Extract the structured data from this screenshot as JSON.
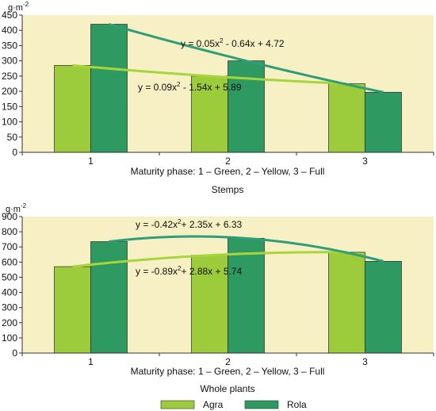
{
  "colors": {
    "plot_bg": "#f6f0c4",
    "agra": "#9ccb3b",
    "rola": "#2e9a62",
    "agra_trend": "#a8d43c",
    "rola_trend": "#2f9e78",
    "axis": "#333333"
  },
  "legend": {
    "agra_label": "Agra",
    "rola_label": "Rola",
    "placement": "bottom-center"
  },
  "chart_data": [
    {
      "type": "bar",
      "ylabel_base": "g·m",
      "ylabel_exp": "-2",
      "xlabel": "Maturity phase: 1 – Green, 2 – Yellow, 3 – Full",
      "subtitle": "Stemps",
      "categories": [
        "1",
        "2",
        "3"
      ],
      "ylim": [
        0,
        450
      ],
      "yticks": [
        0,
        50,
        100,
        150,
        200,
        250,
        300,
        350,
        400,
        450
      ],
      "series": [
        {
          "name": "Agra",
          "values": [
            285,
            250,
            225
          ]
        },
        {
          "name": "Rola",
          "values": [
            420,
            300,
            197
          ]
        }
      ],
      "trendlines": [
        {
          "series": "Rola",
          "pre": "y = 0.05x",
          "sup": "2",
          "post": " - 0.64x + 4.72"
        },
        {
          "series": "Agra",
          "pre": "y = 0.09x",
          "sup": "2",
          "post": " - 1.54x + 5.89"
        }
      ],
      "grid": false
    },
    {
      "type": "bar",
      "ylabel_base": "g·m",
      "ylabel_exp": "-2",
      "xlabel": "Maturity phase: 1 – Green, 2 – Yellow, 3 – Full",
      "subtitle": "Whole plants",
      "categories": [
        "1",
        "2",
        "3"
      ],
      "ylim": [
        0,
        900
      ],
      "yticks": [
        0,
        100,
        200,
        300,
        400,
        500,
        600,
        700,
        800,
        900
      ],
      "series": [
        {
          "name": "Agra",
          "values": [
            570,
            645,
            665
          ]
        },
        {
          "name": "Rola",
          "values": [
            735,
            757,
            605
          ]
        }
      ],
      "trendlines": [
        {
          "series": "Rola",
          "pre": "y = -0.42x",
          "sup": "2",
          "post": "+ 2.35x + 6.33"
        },
        {
          "series": "Agra",
          "pre": "y = -0.89x",
          "sup": "2",
          "post": "+ 2.88x + 5.74"
        }
      ],
      "grid": false
    }
  ]
}
